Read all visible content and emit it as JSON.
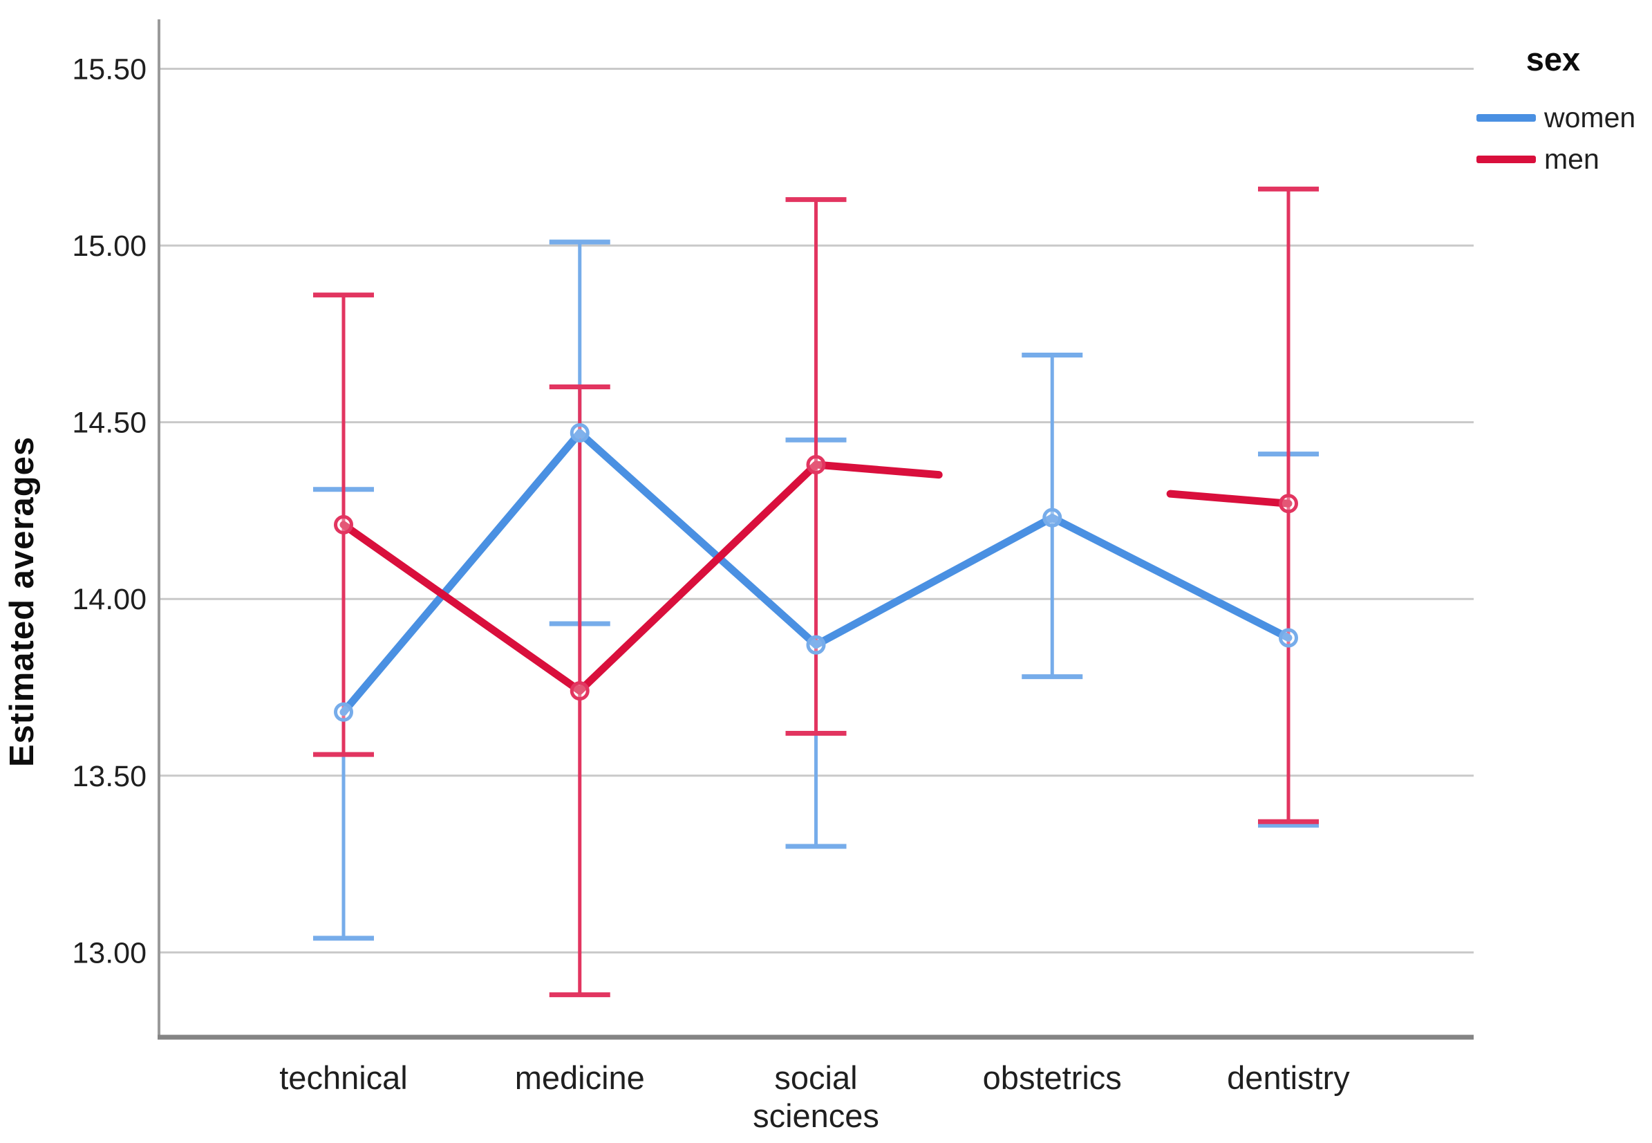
{
  "chart_data": {
    "type": "line",
    "title": "",
    "ylabel": "Estimated averages",
    "xlabel": "",
    "legend_title": "sex",
    "legend_position": "top-right-outside",
    "grid": "horizontal",
    "categories": [
      "technical",
      "medicine",
      "social sciences",
      "obstetrics",
      "dentistry"
    ],
    "category_tick_lines": [
      [
        "technical"
      ],
      [
        "medicine"
      ],
      [
        "social",
        "sciences"
      ],
      [
        "obstetrics"
      ],
      [
        "dentistry"
      ]
    ],
    "ylim": [
      12.76,
      15.64
    ],
    "yticks": [
      13.0,
      13.5,
      14.0,
      14.5,
      15.0,
      15.5
    ],
    "ytick_labels": [
      "13.00",
      "13.50",
      "14.00",
      "14.50",
      "15.00",
      "15.50"
    ],
    "series": [
      {
        "name": "women",
        "color": "#4A90E2",
        "error_color": "#76ACEA",
        "means": [
          13.68,
          14.47,
          13.87,
          14.23,
          13.89
        ],
        "ci_low": [
          13.04,
          13.93,
          13.3,
          13.78,
          13.36
        ],
        "ci_high": [
          14.31,
          15.01,
          14.45,
          14.69,
          14.41
        ]
      },
      {
        "name": "men",
        "color": "#D90F3C",
        "error_color": "#E23560",
        "means": [
          14.21,
          13.74,
          14.38,
          null,
          14.27
        ],
        "ci_low": [
          13.56,
          12.88,
          13.62,
          null,
          13.37
        ],
        "ci_high": [
          14.86,
          14.6,
          15.13,
          null,
          15.16
        ],
        "gap_fraction": [
          0.26,
          0.75
        ]
      }
    ]
  },
  "legend": {
    "title": "sex",
    "items": [
      {
        "label": "women",
        "color": "#4A90E2"
      },
      {
        "label": "men",
        "color": "#D90F3C"
      }
    ]
  },
  "axes": {
    "y_title": "Estimated averages"
  },
  "colors": {
    "gridline": "#c9c9c9",
    "y_axis_line": "#9a9a9a",
    "x_axis_line": "#848484",
    "text": "#1f1f1f"
  }
}
